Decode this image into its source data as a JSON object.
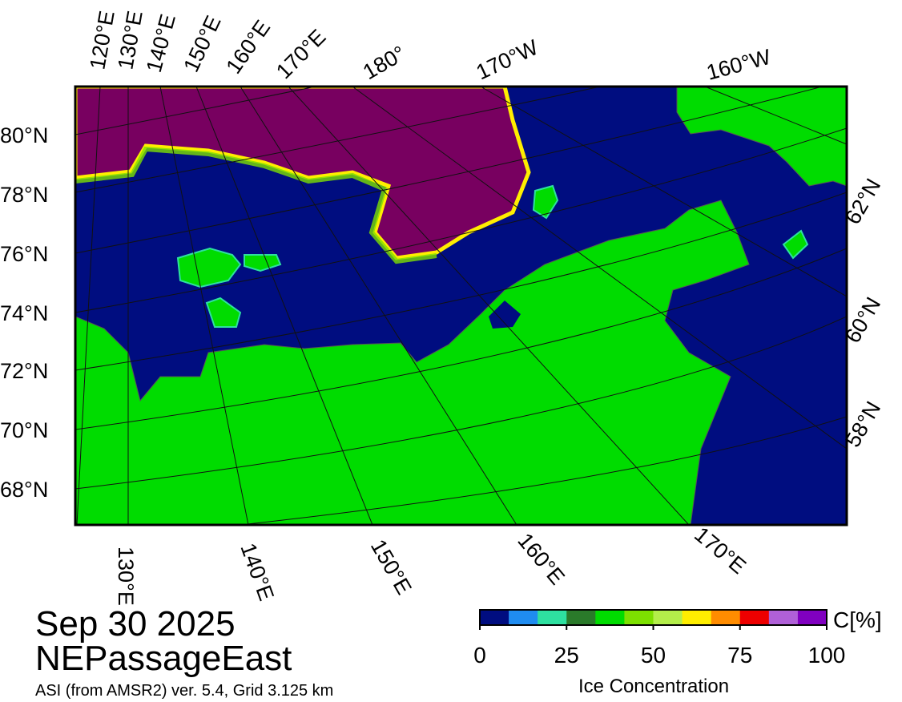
{
  "map": {
    "graticule_labels": {
      "top": [
        "120°E",
        "130°E",
        "140°E",
        "150°E",
        "160°E",
        "170°E",
        "180°",
        "170°W",
        "160°W"
      ],
      "left": [
        "80°N",
        "78°N",
        "76°N",
        "74°N",
        "72°N",
        "70°N",
        "68°N"
      ],
      "right": [
        "62°N",
        "60°N",
        "58°N"
      ],
      "bottom": [
        "130°E",
        "140°E",
        "150°E",
        "160°E",
        "170°E"
      ]
    }
  },
  "title": {
    "date": "Sep 30 2025",
    "region": "NEPassageEast",
    "source": "ASI (from AMSR2) ver. 5.4,  Grid 3.125 km"
  },
  "colorbar": {
    "colors": [
      "#000d80",
      "#1f8cf0",
      "#2ee0a0",
      "#2a7a2a",
      "#00dc00",
      "#7de000",
      "#b4ee4a",
      "#ffee00",
      "#ff8c00",
      "#ee0000",
      "#b060d8",
      "#8000c0"
    ],
    "range": [
      0,
      100
    ],
    "ticks": [
      0,
      25,
      50,
      75,
      100
    ],
    "unit_label": "C[%]",
    "label": "Ice Concentration"
  }
}
